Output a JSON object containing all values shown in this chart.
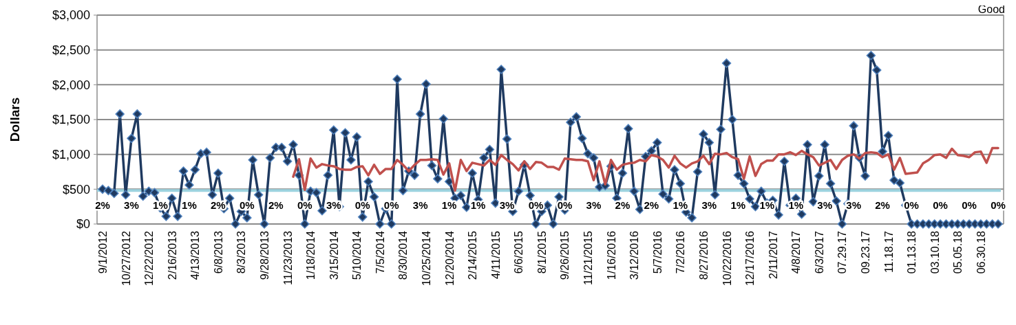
{
  "chart_data": {
    "type": "line",
    "ylabel": "Dollars",
    "categories": [
      "9/1/2012",
      null,
      null,
      null,
      "10/27/2012",
      null,
      null,
      null,
      "12/22/2012",
      null,
      null,
      null,
      "2/16/2013",
      null,
      null,
      null,
      "4/13/2013",
      null,
      null,
      null,
      "6/8/2013",
      null,
      null,
      null,
      "8/3/2013",
      null,
      null,
      null,
      "9/28/2013",
      null,
      null,
      null,
      "11/23/2013",
      null,
      null,
      null,
      "1/18/2014",
      null,
      null,
      null,
      "3/15/2014",
      null,
      null,
      null,
      "5/10/2014",
      null,
      null,
      null,
      "7/5/2014",
      null,
      null,
      null,
      "8/30/2014",
      null,
      null,
      null,
      "10/25/2014",
      null,
      null,
      null,
      "12/20/2014",
      null,
      null,
      null,
      "2/14/2015",
      null,
      null,
      null,
      "4/11/2015",
      null,
      null,
      null,
      "6/6/2015",
      null,
      null,
      null,
      "8/1/2015",
      null,
      null,
      null,
      "9/26/2015",
      null,
      null,
      null,
      "11/21/2015",
      null,
      null,
      null,
      "1/16/2016",
      null,
      null,
      null,
      "3/12/2016",
      null,
      null,
      null,
      "5/7/2016",
      null,
      null,
      null,
      "7/2/2016",
      null,
      null,
      null,
      "8/27/2016",
      null,
      null,
      null,
      "10/22/2016",
      null,
      null,
      null,
      "12/17/2016",
      null,
      null,
      null,
      "2/11/2017",
      null,
      null,
      null,
      "4/8/2017",
      null,
      null,
      null,
      "6/3/2017",
      null,
      null,
      null,
      "07.29.17",
      null,
      null,
      null,
      "09.23.17",
      null,
      null,
      null,
      "11.18.17",
      null,
      null,
      null,
      "01.13.18",
      null,
      null,
      null,
      "03.10.18",
      null,
      null,
      null,
      "05.05.18",
      null,
      null,
      null,
      "06.30.18",
      null,
      null,
      null
    ],
    "series": [
      {
        "color": "#1f3a60",
        "marker": "diamond",
        "values": [
          500,
          480,
          440,
          1580,
          420,
          1230,
          1580,
          400,
          470,
          450,
          230,
          110,
          370,
          110,
          760,
          560,
          780,
          1010,
          1030,
          420,
          730,
          220,
          370,
          0,
          180,
          90,
          920,
          420,
          0,
          950,
          1100,
          1100,
          900,
          1140,
          700,
          0,
          470,
          450,
          190,
          700,
          1350,
          250,
          1310,
          920,
          1250,
          100,
          610,
          390,
          0,
          220,
          0,
          2080,
          480,
          760,
          700,
          1580,
          2010,
          840,
          650,
          1510,
          610,
          370,
          410,
          240,
          730,
          350,
          950,
          1070,
          300,
          2220,
          1220,
          180,
          470,
          850,
          410,
          0,
          180,
          270,
          0,
          390,
          200,
          1460,
          1540,
          1230,
          1010,
          950,
          530,
          550,
          830,
          370,
          730,
          1370,
          470,
          210,
          970,
          1050,
          1170,
          430,
          360,
          780,
          580,
          170,
          90,
          750,
          1290,
          1170,
          420,
          1360,
          2310,
          1500,
          700,
          580,
          360,
          250,
          470,
          300,
          340,
          130,
          900,
          270,
          370,
          140,
          1140,
          320,
          690,
          1140,
          580,
          330,
          0,
          290,
          1410,
          950,
          690,
          2420,
          2210,
          1040,
          1270,
          630,
          590,
          270,
          0,
          0,
          0,
          0,
          0,
          0,
          0,
          0,
          0,
          0,
          0,
          0,
          0,
          0,
          0,
          0
        ]
      },
      {
        "color": "#c0504d",
        "marker": "none",
        "values": [
          null,
          null,
          null,
          null,
          null,
          null,
          null,
          null,
          null,
          null,
          null,
          null,
          null,
          null,
          null,
          null,
          null,
          null,
          null,
          null,
          null,
          null,
          null,
          null,
          null,
          null,
          null,
          null,
          null,
          null,
          null,
          null,
          null,
          680,
          930,
          490,
          940,
          810,
          860,
          840,
          830,
          790,
          780,
          780,
          820,
          830,
          700,
          850,
          720,
          790,
          790,
          920,
          850,
          760,
          850,
          920,
          920,
          930,
          920,
          710,
          870,
          480,
          920,
          760,
          880,
          860,
          840,
          920,
          850,
          990,
          920,
          860,
          770,
          900,
          790,
          890,
          880,
          820,
          820,
          780,
          940,
          930,
          920,
          920,
          900,
          630,
          900,
          570,
          920,
          780,
          850,
          870,
          880,
          920,
          900,
          990,
          970,
          920,
          810,
          980,
          870,
          810,
          870,
          900,
          980,
          860,
          1010,
          1000,
          1020,
          960,
          930,
          650,
          970,
          690,
          860,
          910,
          910,
          1000,
          1000,
          1030,
          990,
          1050,
          1000,
          960,
          840,
          880,
          920,
          790,
          920,
          980,
          1000,
          940,
          1020,
          1030,
          1020,
          960,
          1000,
          780,
          950,
          720,
          730,
          740,
          870,
          920,
          990,
          1000,
          950,
          1080,
          990,
          980,
          960,
          1030,
          1040,
          880,
          1090,
          1090
        ]
      }
    ],
    "ylim": [
      0,
      3000
    ],
    "yticks": [
      {
        "value": 0,
        "label": "$0"
      },
      {
        "value": 500,
        "label": "$500"
      },
      {
        "value": 1000,
        "label": "$1,000"
      },
      {
        "value": 1500,
        "label": "$1,500"
      },
      {
        "value": 2000,
        "label": "$2,000"
      },
      {
        "value": 2500,
        "label": "$2,500"
      },
      {
        "value": 3000,
        "label": "$3,000"
      }
    ],
    "grid": "y",
    "ref_lines": [
      {
        "axis": "y",
        "value": 480,
        "color": "#9dd3df"
      }
    ],
    "annotations": [
      "Good",
      "2%",
      "3%",
      "1%",
      "1%",
      "2%",
      "0%",
      "2%",
      "0%",
      "3%",
      "0%",
      "0%",
      "3%",
      "1%",
      "1%",
      "3%",
      "0%",
      "0%",
      "3%",
      "2%",
      "2%",
      "1%",
      "3%",
      "1%",
      "1%",
      "1%",
      "3%",
      "3%",
      "2%",
      "0%",
      "0%",
      "0%",
      "0%"
    ]
  }
}
